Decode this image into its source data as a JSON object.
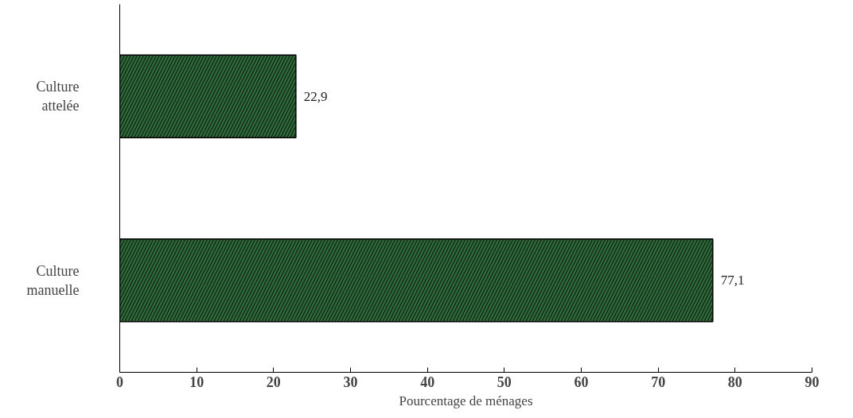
{
  "chart_data": {
    "type": "bar",
    "orientation": "horizontal",
    "xlabel": "Pourcentage de ménages",
    "categories": [
      "Culture\nattelée",
      "Culture\nmanuelle"
    ],
    "values": [
      22.9,
      77.1
    ],
    "value_labels": [
      "22,9",
      "77,1"
    ],
    "color": "#2f6b3b",
    "xlim": [
      0,
      90
    ],
    "xticks": [
      0,
      10,
      20,
      30,
      40,
      50,
      60,
      70,
      80,
      90
    ],
    "grid": false
  }
}
